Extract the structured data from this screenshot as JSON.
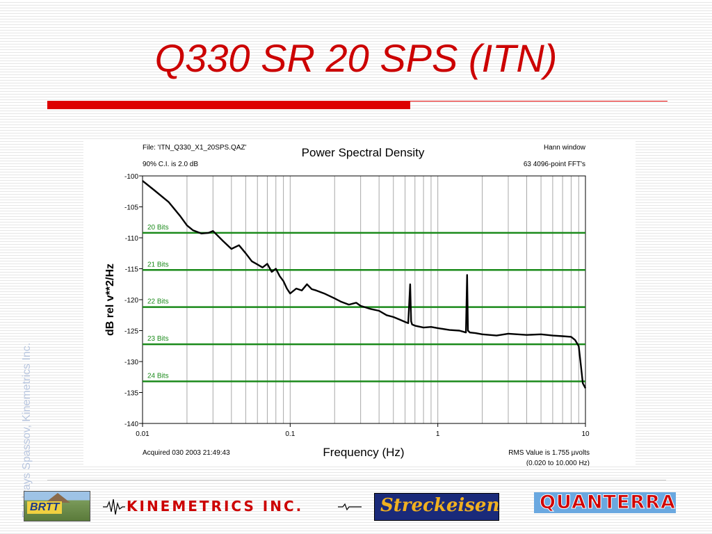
{
  "slide": {
    "title": "Q330 SR 20 SPS (ITN)",
    "side_credit": "Edelvays Spassov, Kinemetrics Inc.",
    "colors": {
      "title": "#cc0000",
      "accent_bar": "#dd0000",
      "bit_lines": "#1a8a1a",
      "trace": "#000000"
    }
  },
  "logos": {
    "brtt": "BRTT",
    "kinemetrics": "KINEMETRICS INC.",
    "streckeisen": "Streckeisen",
    "quanterra": "QUANTERRA"
  },
  "chart_data": {
    "type": "line",
    "title": "Power Spectral Density",
    "xlabel": "Frequency (Hz)",
    "ylabel": "dB rel v**2/Hz",
    "xscale": "log",
    "xlim": [
      0.01,
      10
    ],
    "ylim": [
      -140,
      -100
    ],
    "x_ticks": [
      0.01,
      0.1,
      1,
      10
    ],
    "x_tick_labels": [
      "0.01",
      "0.1",
      "1",
      "10"
    ],
    "y_ticks": [
      -100,
      -105,
      -110,
      -115,
      -120,
      -125,
      -130,
      -135,
      -140
    ],
    "y_tick_labels": [
      "-100",
      "-105",
      "-110",
      "-115",
      "-120",
      "-125",
      "-130",
      "-135",
      "-140"
    ],
    "grid": "vertical log grid",
    "annotations": {
      "top_left_1": "File: 'ITN_Q330_X1_20SPS.QAZ'",
      "top_left_2": "90% C.I. is 2.0 dB",
      "top_right_1": "Hann window",
      "top_right_2": "63 4096-point FFT's",
      "bottom_left": "Acquired 030 2003 21:49:43",
      "bottom_right_1": "RMS Value is 1.755 µvolts",
      "bottom_right_2": "(0.020 to 10.000 Hz)"
    },
    "reference_lines": [
      {
        "label": "20 Bits",
        "y": -109.2
      },
      {
        "label": "21 Bits",
        "y": -115.2
      },
      {
        "label": "22 Bits",
        "y": -121.2
      },
      {
        "label": "23 Bits",
        "y": -127.2
      },
      {
        "label": "24 Bits",
        "y": -133.2
      }
    ],
    "series": [
      {
        "x": [
          0.01,
          0.012,
          0.015,
          0.018,
          0.02,
          0.022,
          0.025,
          0.028,
          0.03,
          0.035,
          0.04,
          0.045,
          0.05,
          0.055,
          0.06,
          0.065,
          0.07,
          0.075,
          0.08,
          0.085,
          0.09,
          0.095,
          0.1,
          0.11,
          0.12,
          0.13,
          0.14,
          0.15,
          0.17,
          0.2,
          0.22,
          0.25,
          0.28,
          0.3,
          0.35,
          0.4,
          0.45,
          0.5,
          0.55,
          0.6,
          0.63,
          0.65,
          0.66,
          0.67,
          0.7,
          0.8,
          0.9,
          1.0,
          1.2,
          1.4,
          1.5,
          1.55,
          1.58,
          1.6,
          1.65,
          1.8,
          2.0,
          2.5,
          3.0,
          4.0,
          5.0,
          6.0,
          7.0,
          8.0,
          8.5,
          9.0,
          9.3,
          9.6,
          10.0
        ],
        "y": [
          -100.8,
          -102.3,
          -104.2,
          -106.5,
          -108.0,
          -108.8,
          -109.3,
          -109.2,
          -108.9,
          -110.5,
          -111.8,
          -111.2,
          -112.5,
          -113.8,
          -114.3,
          -114.8,
          -114.2,
          -115.5,
          -115.0,
          -116.2,
          -117.0,
          -118.2,
          -119.0,
          -118.2,
          -118.5,
          -117.5,
          -118.3,
          -118.5,
          -119.0,
          -119.8,
          -120.3,
          -120.8,
          -120.5,
          -121.0,
          -121.5,
          -121.8,
          -122.5,
          -122.8,
          -123.2,
          -123.6,
          -123.8,
          -117.5,
          -123.5,
          -124.0,
          -124.2,
          -124.5,
          -124.4,
          -124.6,
          -124.9,
          -125.0,
          -125.2,
          -125.3,
          -116.0,
          -125.0,
          -125.3,
          -125.4,
          -125.6,
          -125.8,
          -125.5,
          -125.7,
          -125.6,
          -125.8,
          -125.9,
          -126.0,
          -126.5,
          -127.5,
          -130.5,
          -133.5,
          -134.3
        ]
      }
    ]
  }
}
